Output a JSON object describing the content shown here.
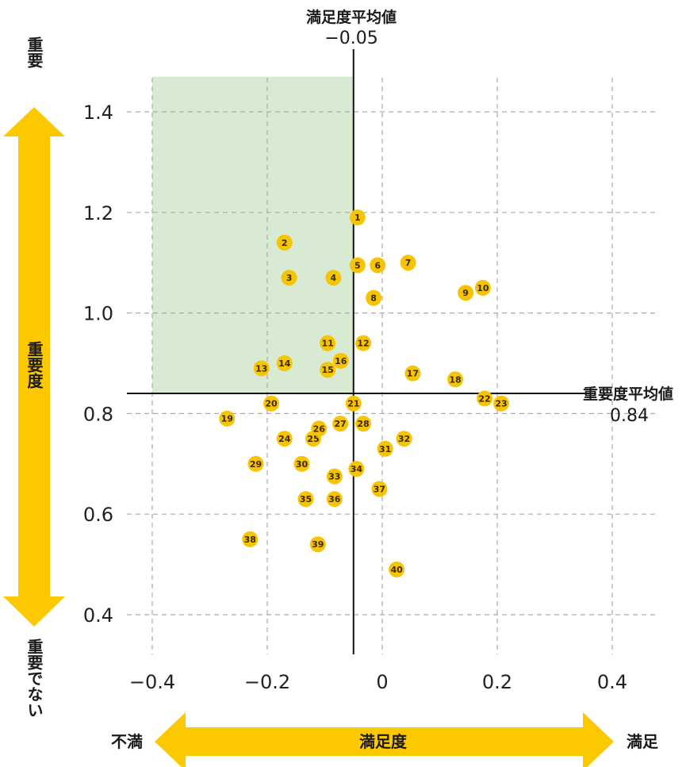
{
  "chart_data": {
    "type": "scatter",
    "x": {
      "min": -0.4,
      "max": 0.4,
      "ticks": [
        "−0.4",
        "−0.2",
        "0",
        "0.2",
        "0.4"
      ],
      "tick_values": [
        -0.4,
        -0.2,
        0,
        0.2,
        0.4
      ]
    },
    "y": {
      "min": 0.4,
      "max": 1.4,
      "ticks": [
        "1.4",
        "1.2",
        "1.0",
        "0.8",
        "0.6",
        "0.4"
      ],
      "tick_values": [
        1.4,
        1.2,
        1.0,
        0.8,
        0.6,
        0.4
      ]
    },
    "grid": true,
    "highlight_region": {
      "x": [
        -0.4,
        -0.05
      ],
      "y": [
        0.84,
        1.47
      ],
      "color": "#d9ead3"
    },
    "reference_lines": {
      "vertical": {
        "label": "満足度平均値",
        "value_text": "−0.05",
        "value": -0.05
      },
      "horizontal": {
        "label": "重要度平均値",
        "value_text": "0.84",
        "value": 0.84
      }
    },
    "points": [
      {
        "id": "1",
        "x": -0.043,
        "y": 1.19
      },
      {
        "id": "2",
        "x": -0.17,
        "y": 1.14
      },
      {
        "id": "3",
        "x": -0.162,
        "y": 1.07
      },
      {
        "id": "4",
        "x": -0.085,
        "y": 1.07
      },
      {
        "id": "5",
        "x": -0.043,
        "y": 1.095
      },
      {
        "id": "6",
        "x": -0.008,
        "y": 1.095
      },
      {
        "id": "7",
        "x": 0.045,
        "y": 1.1
      },
      {
        "id": "8",
        "x": -0.015,
        "y": 1.03
      },
      {
        "id": "9",
        "x": 0.145,
        "y": 1.04
      },
      {
        "id": "10",
        "x": 0.175,
        "y": 1.05
      },
      {
        "id": "11",
        "x": -0.095,
        "y": 0.94
      },
      {
        "id": "12",
        "x": -0.033,
        "y": 0.94
      },
      {
        "id": "13",
        "x": -0.21,
        "y": 0.89
      },
      {
        "id": "14",
        "x": -0.17,
        "y": 0.9
      },
      {
        "id": "15",
        "x": -0.095,
        "y": 0.887
      },
      {
        "id": "16",
        "x": -0.072,
        "y": 0.905
      },
      {
        "id": "17",
        "x": 0.053,
        "y": 0.88
      },
      {
        "id": "18",
        "x": 0.127,
        "y": 0.868
      },
      {
        "id": "19",
        "x": -0.27,
        "y": 0.79
      },
      {
        "id": "20",
        "x": -0.193,
        "y": 0.82
      },
      {
        "id": "21",
        "x": -0.05,
        "y": 0.82
      },
      {
        "id": "22",
        "x": 0.178,
        "y": 0.83
      },
      {
        "id": "23",
        "x": 0.207,
        "y": 0.82
      },
      {
        "id": "24",
        "x": -0.17,
        "y": 0.75
      },
      {
        "id": "25",
        "x": -0.12,
        "y": 0.75
      },
      {
        "id": "26",
        "x": -0.11,
        "y": 0.77
      },
      {
        "id": "27",
        "x": -0.073,
        "y": 0.78
      },
      {
        "id": "28",
        "x": -0.033,
        "y": 0.78
      },
      {
        "id": "29",
        "x": -0.22,
        "y": 0.7
      },
      {
        "id": "30",
        "x": -0.14,
        "y": 0.7
      },
      {
        "id": "31",
        "x": 0.005,
        "y": 0.73
      },
      {
        "id": "32",
        "x": 0.038,
        "y": 0.75
      },
      {
        "id": "33",
        "x": -0.083,
        "y": 0.675
      },
      {
        "id": "34",
        "x": -0.045,
        "y": 0.69
      },
      {
        "id": "35",
        "x": -0.133,
        "y": 0.63
      },
      {
        "id": "36",
        "x": -0.083,
        "y": 0.63
      },
      {
        "id": "37",
        "x": -0.005,
        "y": 0.65
      },
      {
        "id": "38",
        "x": -0.23,
        "y": 0.55
      },
      {
        "id": "39",
        "x": -0.112,
        "y": 0.54
      },
      {
        "id": "40",
        "x": 0.025,
        "y": 0.49
      }
    ],
    "point_color": "#f6c400"
  },
  "labels": {
    "y_top": "重要",
    "y_mid": "重要度",
    "y_bottom": "重要でない",
    "x_left": "不満",
    "x_mid": "満足度",
    "x_right": "満足"
  },
  "colors": {
    "arrow": "#fcc800",
    "grid": "#aaaaaa",
    "region": "#d9ead3",
    "axis_line": "#111111"
  }
}
